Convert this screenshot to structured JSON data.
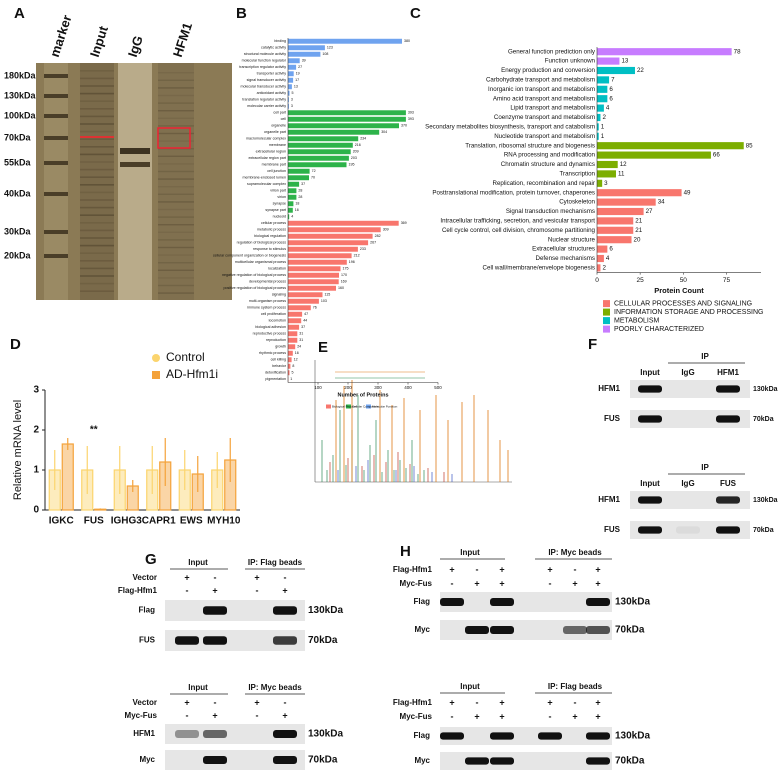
{
  "panel_labels": [
    "A",
    "B",
    "C",
    "D",
    "E",
    "F",
    "G",
    "H"
  ],
  "gel": {
    "lanes": [
      "marker",
      "Input",
      "IgG",
      "HFM1"
    ],
    "markers": [
      "180kDa",
      "130kDa",
      "100kDa",
      "70kDa",
      "55kDa",
      "40kDa",
      "30kDa",
      "20kDa"
    ]
  },
  "chart_data": [
    {
      "type": "hbar",
      "xlabel": "Number of Proteins",
      "xlim": [
        0,
        500
      ],
      "xticks": [
        100,
        200,
        300,
        400,
        500
      ],
      "series": [
        {
          "name": "Molecular Function",
          "color": "#6fa3ef",
          "categories": [
            "binding",
            "catalytic activity",
            "structural molecule activity",
            "molecular function regulator",
            "transcription regulator activity",
            "transporter activity",
            "signal transducer activity",
            "molecular transducer activity",
            "antioxidant activity",
            "translation regulator activity",
            "molecular carrier activity"
          ],
          "values": [
            380,
            123,
            108,
            39,
            27,
            19,
            17,
            13,
            5,
            3,
            3
          ]
        },
        {
          "name": "Cellular Component",
          "color": "#2db34a",
          "categories": [
            "cell part",
            "cell",
            "organelle",
            "organelle part",
            "macromolecular complex",
            "membrane",
            "extracellular region",
            "extracellular region part",
            "membrane part",
            "cell junction",
            "membrane-enclosed lumen",
            "supramolecular complex",
            "virion part",
            "virion",
            "synapse",
            "synapse part",
            "nucleoid"
          ],
          "values": [
            393,
            393,
            370,
            304,
            234,
            216,
            209,
            203,
            195,
            72,
            70,
            37,
            28,
            28,
            18,
            16,
            4
          ]
        },
        {
          "name": "Biological Process",
          "color": "#f8766d",
          "categories": [
            "cellular process",
            "metabolic process",
            "biological regulation",
            "regulation of biological process",
            "response to stimulus",
            "cellular component organization or biogenesis",
            "multicellular organismal process",
            "localization",
            "negative regulation of biological process",
            "developmental process",
            "positive regulation of biological process",
            "signaling",
            "multi-organism process",
            "immune system process",
            "cell proliferation",
            "locomotion",
            "biological adhesion",
            "reproductive process",
            "reproduction",
            "growth",
            "rhythmic process",
            "cell killing",
            "behavior",
            "detoxification",
            "pigmentation"
          ],
          "values": [
            369,
            309,
            282,
            267,
            233,
            212,
            196,
            175,
            170,
            169,
            160,
            115,
            103,
            76,
            47,
            44,
            37,
            31,
            31,
            24,
            16,
            12,
            8,
            5,
            1
          ]
        }
      ]
    },
    {
      "type": "hbar",
      "xlabel": "Protein Count",
      "xlim": [
        0,
        95
      ],
      "xticks": [
        0,
        25,
        50,
        75
      ],
      "series": [
        {
          "name": "POORLY CHARACTERIZED",
          "color": "#c77cff",
          "categories": [
            "General function prediction only",
            "Function unknown"
          ],
          "values": [
            78,
            13
          ]
        },
        {
          "name": "METABOLISM",
          "color": "#00bfc4",
          "categories": [
            "Energy production and conversion",
            "Carbohydrate transport and metabolism",
            "Inorganic ion transport and metabolism",
            "Amino acid transport and metabolism",
            "Lipid transport and metabolism",
            "Coenzyme transport and metabolism",
            "Secondary metabolites biosynthesis, transport and catabolism",
            "Nucleotide transport and metabolism"
          ],
          "values": [
            22,
            7,
            6,
            6,
            4,
            2,
            1,
            1
          ]
        },
        {
          "name": "INFORMATION STORAGE AND PROCESSING",
          "color": "#7cae00",
          "categories": [
            "Translation, ribosomal structure and biogenesis",
            "RNA processing and modification",
            "Chromatin structure and dynamics",
            "Transcription",
            "Replication, recombination and repair"
          ],
          "values": [
            85,
            66,
            12,
            11,
            3
          ]
        },
        {
          "name": "CELLULAR PROCESSES AND SIGNALING",
          "color": "#f8766d",
          "categories": [
            "Posttranslational modification, protein turnover, chaperones",
            "Cytoskeleton",
            "Signal transduction mechanisms",
            "Intracellular trafficking, secretion, and vesicular transport",
            "Cell cycle control, cell division, chromosome partitioning",
            "Nuclear structure",
            "Extracellular structures",
            "Defense mechanisms",
            "Cell wall/membrane/envelope biogenesis"
          ],
          "values": [
            49,
            34,
            27,
            21,
            21,
            20,
            6,
            4,
            2
          ]
        }
      ]
    },
    {
      "type": "bar",
      "ylabel": "Relative mRNA level",
      "ylim": [
        0,
        3
      ],
      "yticks": [
        0,
        1,
        2,
        3
      ],
      "annotation": "**",
      "categories": [
        "IGKC",
        "FUS",
        "IGHG3",
        "CAPR1",
        "EWS",
        "MYH10"
      ],
      "series": [
        {
          "name": "Control",
          "color": "#fbd46d",
          "values": [
            1.0,
            1.0,
            1.0,
            1.0,
            1.0,
            1.0
          ],
          "errors": [
            0.5,
            0.6,
            0.6,
            0.6,
            0.5,
            0.45
          ]
        },
        {
          "name": "AD-Hfm1i",
          "color": "#f4a23a",
          "values": [
            1.65,
            0.02,
            0.6,
            1.2,
            0.9,
            1.25
          ],
          "errors": [
            0.15,
            0.02,
            0.15,
            0.6,
            0.45,
            0.55
          ]
        }
      ]
    }
  ],
  "blots": [
    {
      "headers": [
        "IP"
      ],
      "lanes": [
        "Input",
        "IgG",
        "HFM1"
      ],
      "rows": [
        {
          "label": "HFM1",
          "size": "130kDa"
        },
        {
          "label": "FUS",
          "size": "70kDa"
        }
      ]
    },
    {
      "headers": [
        "IP"
      ],
      "lanes": [
        "Input",
        "IgG",
        "FUS"
      ],
      "rows": [
        {
          "label": "HFM1",
          "size": "130kDa"
        },
        {
          "label": "FUS",
          "size": "70kDa"
        }
      ]
    },
    {
      "headers": [
        "Input",
        "IP: Flag beads"
      ],
      "conditions": [
        {
          "label": "Vector",
          "signs": [
            "+",
            "-",
            "+",
            "-"
          ]
        },
        {
          "label": "Flag-Hfm1",
          "signs": [
            "-",
            "+",
            "-",
            "+"
          ]
        }
      ],
      "rows": [
        {
          "label": "Flag",
          "size": "130kDa"
        },
        {
          "label": "FUS",
          "size": "70kDa"
        }
      ]
    },
    {
      "headers": [
        "Input",
        "IP: Myc beads"
      ],
      "conditions": [
        {
          "label": "Vector",
          "signs": [
            "+",
            "-",
            "+",
            "-"
          ]
        },
        {
          "label": "Myc-Fus",
          "signs": [
            "-",
            "+",
            "-",
            "+"
          ]
        }
      ],
      "rows": [
        {
          "label": "HFM1",
          "size": "130kDa"
        },
        {
          "label": "Myc",
          "size": "70kDa"
        }
      ]
    },
    {
      "headers": [
        "Input",
        "IP: Myc beads"
      ],
      "conditions": [
        {
          "label": "Flag-Hfm1",
          "signs": [
            "+",
            "-",
            "+",
            "+",
            "-",
            "+"
          ]
        },
        {
          "label": "Myc-Fus",
          "signs": [
            "-",
            "+",
            "+",
            "-",
            "+",
            "+"
          ]
        }
      ],
      "rows": [
        {
          "label": "Flag",
          "size": "130kDa"
        },
        {
          "label": "Myc",
          "size": "70kDa"
        }
      ]
    },
    {
      "headers": [
        "Input",
        "IP: Flag beads"
      ],
      "conditions": [
        {
          "label": "Flag-Hfm1",
          "signs": [
            "+",
            "-",
            "+",
            "+",
            "-",
            "+"
          ]
        },
        {
          "label": "Myc-Fus",
          "signs": [
            "-",
            "+",
            "+",
            "-",
            "+",
            "+"
          ]
        }
      ],
      "rows": [
        {
          "label": "Flag",
          "size": "130kDa"
        },
        {
          "label": "Myc",
          "size": "70kDa"
        }
      ]
    }
  ]
}
